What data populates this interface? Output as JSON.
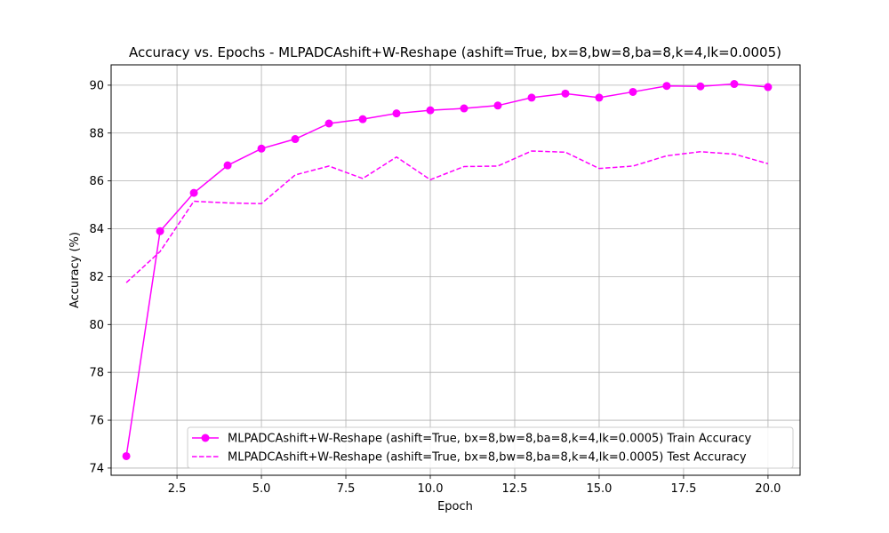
{
  "chart_data": {
    "type": "line",
    "title": "Accuracy vs. Epochs - MLPADCAshift+W-Reshape (ashift=True, bx=8,bw=8,ba=8,k=4,lk=0.0005)",
    "xlabel": "Epoch",
    "ylabel": "Accuracy (%)",
    "xlim": [
      0.55,
      20.95
    ],
    "ylim": [
      73.7,
      90.85
    ],
    "xticks": [
      2.5,
      5.0,
      7.5,
      10.0,
      12.5,
      15.0,
      17.5,
      20.0
    ],
    "xtick_labels": [
      "2.5",
      "5.0",
      "7.5",
      "10.0",
      "12.5",
      "15.0",
      "17.5",
      "20.0"
    ],
    "yticks": [
      74,
      76,
      78,
      80,
      82,
      84,
      86,
      88,
      90
    ],
    "ytick_labels": [
      "74",
      "76",
      "78",
      "80",
      "82",
      "84",
      "86",
      "88",
      "90"
    ],
    "grid": true,
    "legend_position": "lower-right",
    "x": [
      1,
      2,
      3,
      4,
      5,
      6,
      7,
      8,
      9,
      10,
      11,
      12,
      13,
      14,
      15,
      16,
      17,
      18,
      19,
      20
    ],
    "series": [
      {
        "name": "MLPADCAshift+W-Reshape (ashift=True, bx=8,bw=8,ba=8,k=4,lk=0.0005) Train Accuracy",
        "style": "solid-marker",
        "color": "#ff00ff",
        "values": [
          74.5,
          83.9,
          85.5,
          86.65,
          87.35,
          87.75,
          88.4,
          88.58,
          88.82,
          88.95,
          89.03,
          89.15,
          89.48,
          89.65,
          89.48,
          89.72,
          89.97,
          89.95,
          90.05,
          89.92
        ]
      },
      {
        "name": "MLPADCAshift+W-Reshape (ashift=True, bx=8,bw=8,ba=8,k=4,lk=0.0005) Test Accuracy",
        "style": "dashed",
        "color": "#ff00ff",
        "values": [
          81.75,
          83.05,
          85.15,
          85.08,
          85.05,
          86.25,
          86.62,
          86.1,
          87.0,
          86.05,
          86.6,
          86.62,
          87.25,
          87.2,
          86.52,
          86.62,
          87.05,
          87.22,
          87.12,
          86.72
        ]
      }
    ]
  }
}
